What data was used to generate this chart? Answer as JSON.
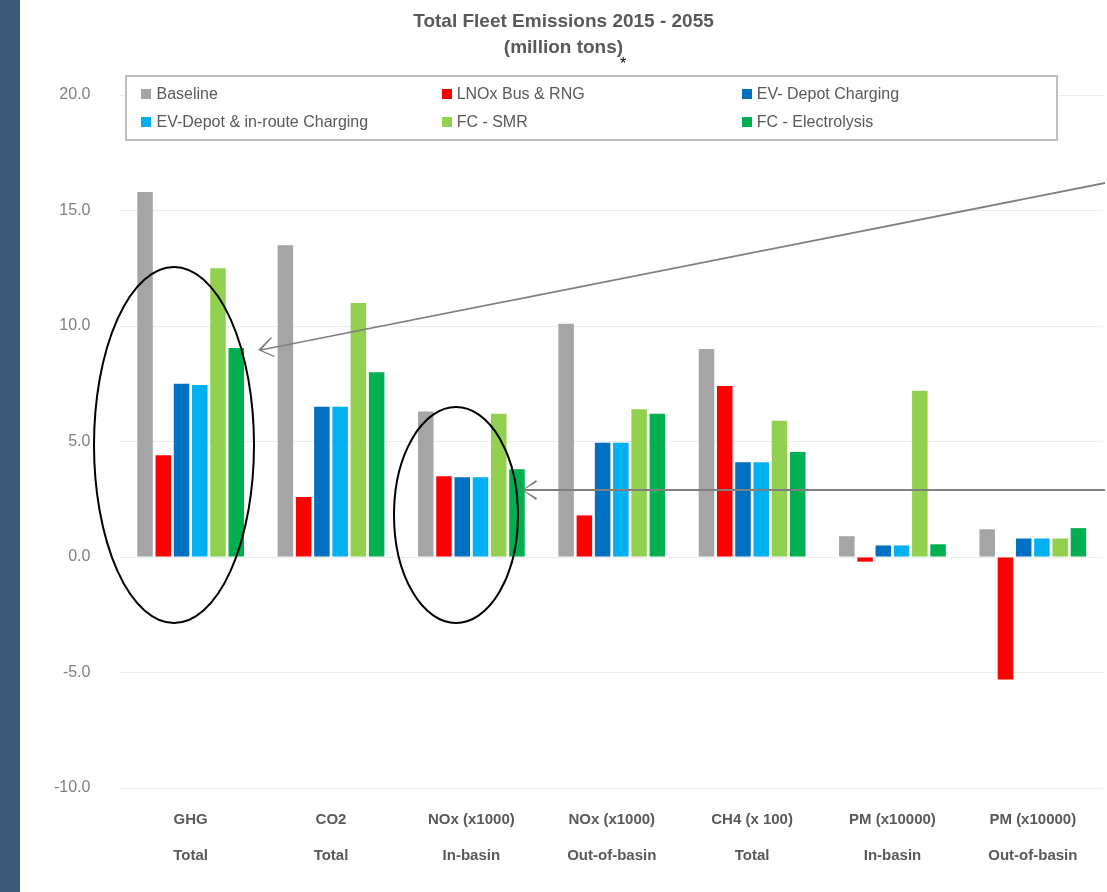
{
  "chart_data": {
    "type": "bar",
    "title": "Total Fleet Emissions 2015 - 2055",
    "subtitle": "(million tons)",
    "categories": [
      "GHG\nTotal",
      "CO2\nTotal",
      "NOx (x1000)\nIn-basin",
      "NOx (x1000)\nOut-of-basin",
      "CH4 (x 100)\nTotal",
      "PM (x10000)\nIn-basin",
      "PM (x10000)\nOut-of-basin"
    ],
    "series": [
      {
        "name": "Baseline",
        "color": "#a5a5a5",
        "values": [
          15.8,
          13.5,
          6.3,
          10.1,
          9.0,
          0.9,
          1.2
        ]
      },
      {
        "name": "LNOx Bus & RNG",
        "color": "#ff0000",
        "values": [
          4.4,
          2.6,
          3.5,
          1.8,
          7.4,
          -0.2,
          -5.3
        ]
      },
      {
        "name": "EV- Depot Charging",
        "color": "#0070c0",
        "values": [
          7.5,
          6.5,
          3.45,
          4.95,
          4.1,
          0.5,
          0.8
        ]
      },
      {
        "name": "EV-Depot & in-route Charging",
        "color": "#00b0f0",
        "values": [
          7.45,
          6.5,
          3.45,
          4.95,
          4.1,
          0.5,
          0.8
        ]
      },
      {
        "name": "FC - SMR",
        "color": "#92d050",
        "values": [
          12.5,
          11.0,
          6.2,
          6.4,
          5.9,
          7.2,
          0.8
        ]
      },
      {
        "name": "FC - Electrolysis",
        "color": "#00b050",
        "values": [
          9.05,
          8.0,
          3.8,
          6.2,
          4.55,
          0.55,
          1.25
        ]
      }
    ],
    "ylim": [
      -10,
      20
    ],
    "yticks": [
      {
        "value": -10,
        "label": "-10.0"
      },
      {
        "value": -5,
        "label": "-5.0"
      },
      {
        "value": 0,
        "label": "0.0"
      },
      {
        "value": 5,
        "label": "5.0"
      },
      {
        "value": 10,
        "label": "10.0"
      },
      {
        "value": 15,
        "label": "15.0"
      },
      {
        "value": 20,
        "label": "20.0"
      }
    ],
    "grid": "y",
    "legend": "top",
    "annotations": [
      "*"
    ]
  }
}
